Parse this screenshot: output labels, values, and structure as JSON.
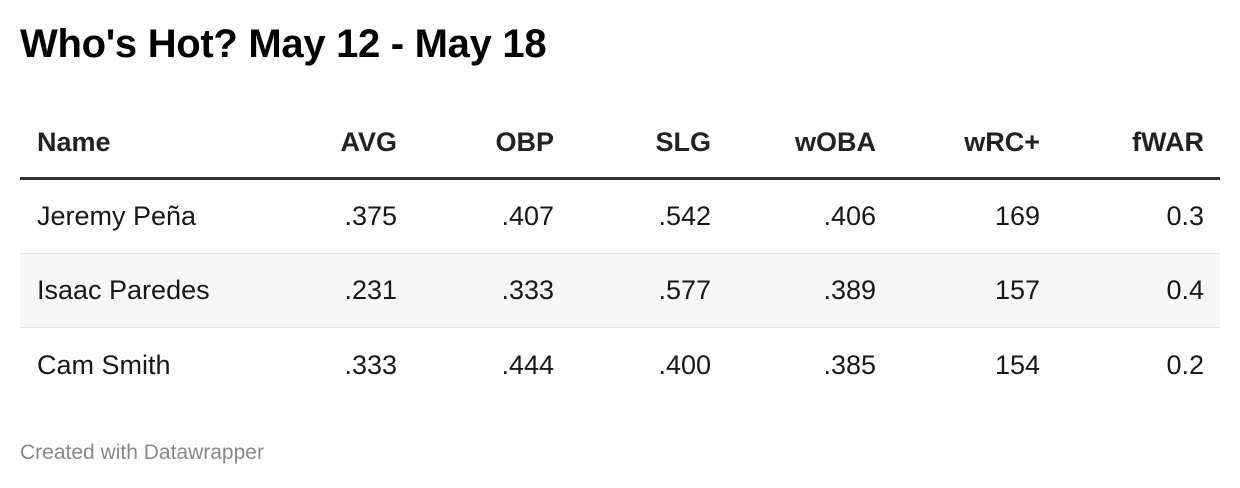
{
  "chart_data": {
    "type": "table",
    "title": "Who's Hot? May 12 - May 18",
    "columns": [
      "Name",
      "AVG",
      "OBP",
      "SLG",
      "wOBA",
      "wRC+",
      "fWAR"
    ],
    "rows": [
      [
        "Jeremy Peña",
        ".375",
        ".407",
        ".542",
        ".406",
        "169",
        "0.3"
      ],
      [
        "Isaac Paredes",
        ".231",
        ".333",
        ".577",
        ".389",
        "157",
        "0.4"
      ],
      [
        "Cam Smith",
        ".333",
        ".444",
        ".400",
        ".385",
        "154",
        "0.2"
      ]
    ],
    "striped_rows": [
      false,
      true,
      false
    ]
  },
  "footer": {
    "credit": "Created with Datawrapper"
  },
  "colors": {
    "header_rule": "#333333",
    "row_stripe": "#f7f7f7",
    "row_divider": "#e3e3e3",
    "footer_text": "#888888"
  }
}
